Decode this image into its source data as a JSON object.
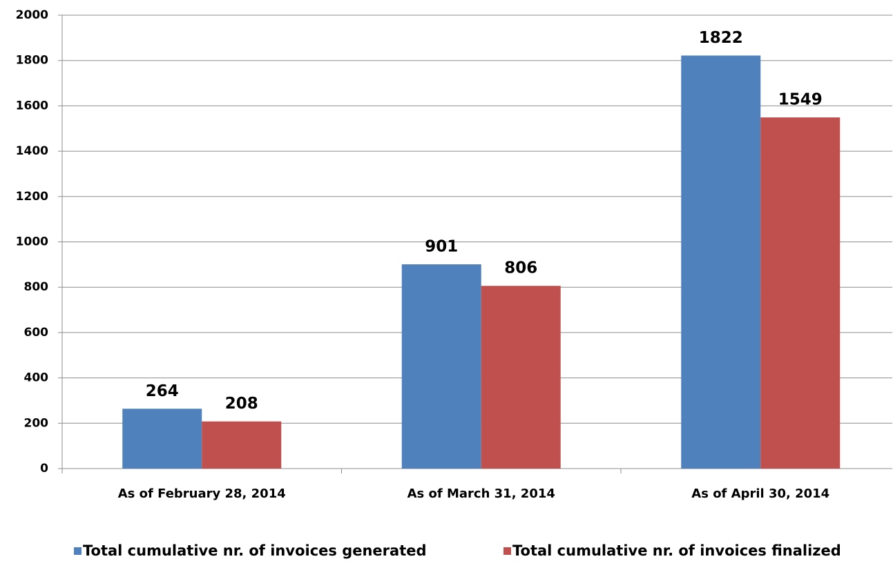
{
  "chart_data": {
    "type": "bar",
    "categories": [
      "As of February 28, 2014",
      "As of March 31, 2014",
      "As of April 30, 2014"
    ],
    "series": [
      {
        "name": "Total cumulative nr. of invoices generated",
        "color": "#4f81bd",
        "values": [
          264,
          901,
          1822
        ]
      },
      {
        "name": "Total cumulative nr. of invoices finalized",
        "color": "#c0504d",
        "values": [
          208,
          806,
          1549
        ]
      }
    ],
    "ylim": [
      0,
      2000
    ],
    "yticks": [
      0,
      200,
      400,
      600,
      800,
      1000,
      1200,
      1400,
      1600,
      1800,
      2000
    ],
    "grid": true,
    "legend": "bottom"
  }
}
